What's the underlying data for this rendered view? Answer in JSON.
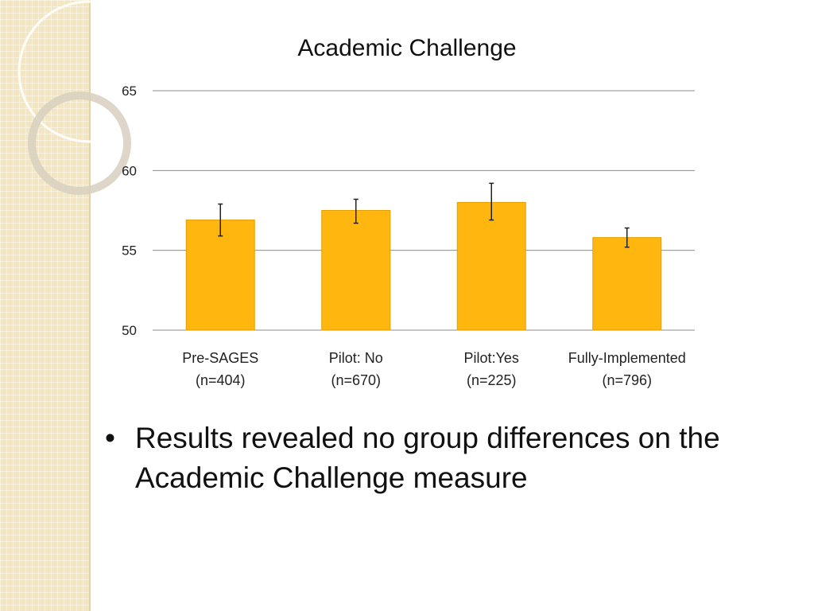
{
  "slide": {
    "bullet": "Results revealed no group differences on the Academic Challenge measure",
    "bullet_marker": "•"
  },
  "chart_data": {
    "type": "bar",
    "title": "Academic Challenge",
    "categories": [
      "Pre-SAGES",
      "Pilot: No",
      "Pilot:Yes",
      "Fully-Implemented"
    ],
    "category_sublabels": [
      "(n=404)",
      "(n=670)",
      "(n=225)",
      "(n=796)"
    ],
    "values": [
      56.9,
      57.5,
      58.0,
      55.8
    ],
    "error_low": [
      55.9,
      56.7,
      56.9,
      55.2
    ],
    "error_high": [
      57.9,
      58.2,
      59.2,
      56.4
    ],
    "ylim": [
      50,
      65
    ],
    "yticks": [
      50,
      55,
      60,
      65
    ],
    "xlabel": "",
    "ylabel": "",
    "grid": true,
    "bar_color": "#ffb60f",
    "bar_edge_color": "#e59e00",
    "gridline_color": "#8c8c8c"
  }
}
